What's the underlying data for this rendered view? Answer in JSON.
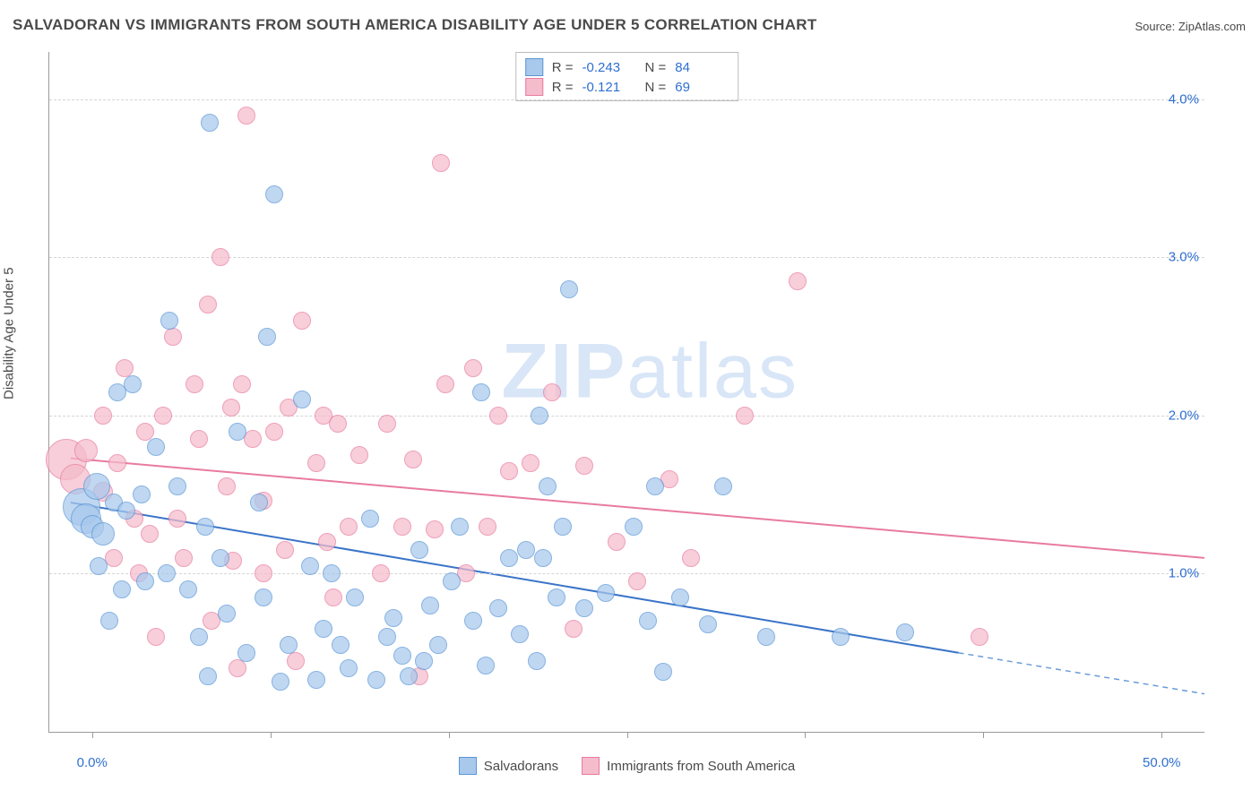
{
  "title": "SALVADORAN VS IMMIGRANTS FROM SOUTH AMERICA DISABILITY AGE UNDER 5 CORRELATION CHART",
  "source_label": "Source: ZipAtlas.com",
  "ylabel": "Disability Age Under 5",
  "watermark_a": "ZIP",
  "watermark_b": "atlas",
  "chart": {
    "type": "scatter",
    "xlim": [
      -2,
      52
    ],
    "ylim": [
      0,
      4.3
    ],
    "xticks": [
      0,
      8.33,
      16.67,
      25,
      33.33,
      41.67,
      50
    ],
    "xtick_labels_visible": {
      "0": "0.0%",
      "50": "50.0%"
    },
    "ygrid": [
      1,
      2,
      3,
      4
    ],
    "ytick_labels": {
      "1": "1.0%",
      "2": "2.0%",
      "3": "3.0%",
      "4": "4.0%"
    },
    "background_color": "#ffffff",
    "grid_color": "#d5d5d5",
    "axis_color": "#9a9a9a",
    "label_fontsize": 15,
    "title_fontsize": 17
  },
  "series": [
    {
      "name": "Salvadorans",
      "color_fill": "#a8c8ec",
      "color_stroke": "#5a96d6",
      "r_label": "R =",
      "r_value": "-0.243",
      "n_label": "N =",
      "n_value": "84",
      "marker_radius": 9,
      "trend": {
        "x1": -1,
        "y1": 1.45,
        "x2": 40.5,
        "y2": 0.5,
        "dash_to_x": 52,
        "dash_to_y": 0.24,
        "width": 2
      },
      "points": [
        [
          -0.5,
          1.42,
          20
        ],
        [
          -0.3,
          1.35,
          16
        ],
        [
          0.2,
          1.55,
          14
        ],
        [
          0.0,
          1.3,
          12
        ],
        [
          0.5,
          1.25,
          12
        ],
        [
          0.3,
          1.05,
          9
        ],
        [
          1.0,
          1.45,
          9
        ],
        [
          0.8,
          0.7,
          9
        ],
        [
          1.2,
          2.15,
          9
        ],
        [
          1.4,
          0.9,
          9
        ],
        [
          1.6,
          1.4,
          9
        ],
        [
          1.9,
          2.2,
          9
        ],
        [
          2.3,
          1.5,
          9
        ],
        [
          2.5,
          0.95,
          9
        ],
        [
          3.0,
          1.8,
          9
        ],
        [
          3.5,
          1.0,
          9
        ],
        [
          3.6,
          2.6,
          9
        ],
        [
          4.0,
          1.55,
          9
        ],
        [
          4.5,
          0.9,
          9
        ],
        [
          5.0,
          0.6,
          9
        ],
        [
          5.3,
          1.3,
          9
        ],
        [
          5.5,
          3.85,
          9
        ],
        [
          5.4,
          0.35,
          9
        ],
        [
          6.0,
          1.1,
          9
        ],
        [
          6.3,
          0.75,
          9
        ],
        [
          6.8,
          1.9,
          9
        ],
        [
          7.2,
          0.5,
          9
        ],
        [
          7.8,
          1.45,
          9
        ],
        [
          8.0,
          0.85,
          9
        ],
        [
          8.2,
          2.5,
          9
        ],
        [
          8.5,
          3.4,
          9
        ],
        [
          8.8,
          0.32,
          9
        ],
        [
          9.2,
          0.55,
          9
        ],
        [
          9.8,
          2.1,
          9
        ],
        [
          10.2,
          1.05,
          9
        ],
        [
          10.5,
          0.33,
          9
        ],
        [
          10.8,
          0.65,
          9
        ],
        [
          11.2,
          1.0,
          9
        ],
        [
          11.6,
          0.55,
          9
        ],
        [
          12.0,
          0.4,
          9
        ],
        [
          12.3,
          0.85,
          9
        ],
        [
          13.0,
          1.35,
          9
        ],
        [
          13.3,
          0.33,
          9
        ],
        [
          13.8,
          0.6,
          9
        ],
        [
          14.1,
          0.72,
          9
        ],
        [
          14.5,
          0.48,
          9
        ],
        [
          14.8,
          0.35,
          9
        ],
        [
          15.3,
          1.15,
          9
        ],
        [
          15.5,
          0.45,
          9
        ],
        [
          15.8,
          0.8,
          9
        ],
        [
          16.2,
          0.55,
          9
        ],
        [
          16.8,
          0.95,
          9
        ],
        [
          17.2,
          1.3,
          9
        ],
        [
          17.8,
          0.7,
          9
        ],
        [
          18.2,
          2.15,
          9
        ],
        [
          18.4,
          0.42,
          9
        ],
        [
          19.0,
          0.78,
          9
        ],
        [
          19.5,
          1.1,
          9
        ],
        [
          20.0,
          0.62,
          9
        ],
        [
          20.3,
          1.15,
          9
        ],
        [
          20.8,
          0.45,
          9
        ],
        [
          20.9,
          2.0,
          9
        ],
        [
          21.1,
          1.1,
          9
        ],
        [
          21.3,
          1.55,
          9
        ],
        [
          21.7,
          0.85,
          9
        ],
        [
          22.0,
          1.3,
          9
        ],
        [
          22.3,
          2.8,
          9
        ],
        [
          23.0,
          0.78,
          9
        ],
        [
          24.0,
          0.88,
          9
        ],
        [
          25.3,
          1.3,
          9
        ],
        [
          26.0,
          0.7,
          9
        ],
        [
          26.3,
          1.55,
          9
        ],
        [
          26.7,
          0.38,
          9
        ],
        [
          27.5,
          0.85,
          9
        ],
        [
          28.8,
          0.68,
          9
        ],
        [
          29.5,
          1.55,
          9
        ],
        [
          31.5,
          0.6,
          9
        ],
        [
          35.0,
          0.6,
          9
        ],
        [
          38.0,
          0.63,
          9
        ]
      ]
    },
    {
      "name": "Immigrants from South America",
      "color_fill": "#f5bccb",
      "color_stroke": "#e87ba0",
      "r_label": "R =",
      "r_value": "-0.121",
      "n_label": "N =",
      "n_value": "69",
      "marker_radius": 9,
      "trend": {
        "x1": -1,
        "y1": 1.73,
        "x2": 52,
        "y2": 1.1,
        "width": 2
      },
      "points": [
        [
          -1.2,
          1.72,
          22
        ],
        [
          -0.8,
          1.6,
          16
        ],
        [
          -0.3,
          1.78,
          12
        ],
        [
          0.5,
          1.52,
          10
        ],
        [
          0.5,
          2.0,
          9
        ],
        [
          1.0,
          1.1,
          9
        ],
        [
          1.2,
          1.7,
          9
        ],
        [
          1.5,
          2.3,
          9
        ],
        [
          2.0,
          1.35,
          9
        ],
        [
          2.2,
          1.0,
          9
        ],
        [
          2.5,
          1.9,
          9
        ],
        [
          2.7,
          1.25,
          9
        ],
        [
          3.0,
          0.6,
          9
        ],
        [
          3.3,
          2.0,
          9
        ],
        [
          3.8,
          2.5,
          9
        ],
        [
          4.0,
          1.35,
          9
        ],
        [
          4.3,
          1.1,
          9
        ],
        [
          4.8,
          2.2,
          9
        ],
        [
          5.0,
          1.85,
          9
        ],
        [
          5.4,
          2.7,
          9
        ],
        [
          5.6,
          0.7,
          9
        ],
        [
          6.0,
          3.0,
          9
        ],
        [
          6.3,
          1.55,
          9
        ],
        [
          6.5,
          2.05,
          9
        ],
        [
          6.6,
          1.08,
          9
        ],
        [
          6.8,
          0.4,
          9
        ],
        [
          7.0,
          2.2,
          9
        ],
        [
          7.2,
          3.9,
          9
        ],
        [
          7.5,
          1.85,
          9
        ],
        [
          8.0,
          1.46,
          9
        ],
        [
          8.0,
          1.0,
          9
        ],
        [
          8.5,
          1.9,
          9
        ],
        [
          9.0,
          1.15,
          9
        ],
        [
          9.2,
          2.05,
          9
        ],
        [
          9.5,
          0.45,
          9
        ],
        [
          9.8,
          2.6,
          9
        ],
        [
          10.5,
          1.7,
          9
        ],
        [
          10.8,
          2.0,
          9
        ],
        [
          11.0,
          1.2,
          9
        ],
        [
          11.3,
          0.85,
          9
        ],
        [
          11.5,
          1.95,
          9
        ],
        [
          12.0,
          1.3,
          9
        ],
        [
          12.5,
          1.75,
          9
        ],
        [
          13.5,
          1.0,
          9
        ],
        [
          13.8,
          1.95,
          9
        ],
        [
          14.5,
          1.3,
          9
        ],
        [
          15.0,
          1.72,
          9
        ],
        [
          15.3,
          0.35,
          9
        ],
        [
          16.0,
          1.28,
          9
        ],
        [
          16.3,
          3.6,
          9
        ],
        [
          16.5,
          2.2,
          9
        ],
        [
          17.5,
          1.0,
          9
        ],
        [
          17.8,
          2.3,
          9
        ],
        [
          18.5,
          1.3,
          9
        ],
        [
          19.0,
          2.0,
          9
        ],
        [
          19.5,
          1.65,
          9
        ],
        [
          20.5,
          1.7,
          9
        ],
        [
          21.5,
          2.15,
          9
        ],
        [
          22.5,
          0.65,
          9
        ],
        [
          23.0,
          1.68,
          9
        ],
        [
          24.5,
          1.2,
          9
        ],
        [
          25.5,
          0.95,
          9
        ],
        [
          27.0,
          1.6,
          9
        ],
        [
          28.0,
          1.1,
          9
        ],
        [
          30.5,
          2.0,
          9
        ],
        [
          33.0,
          2.85,
          9
        ],
        [
          41.5,
          0.6,
          9
        ]
      ]
    }
  ]
}
